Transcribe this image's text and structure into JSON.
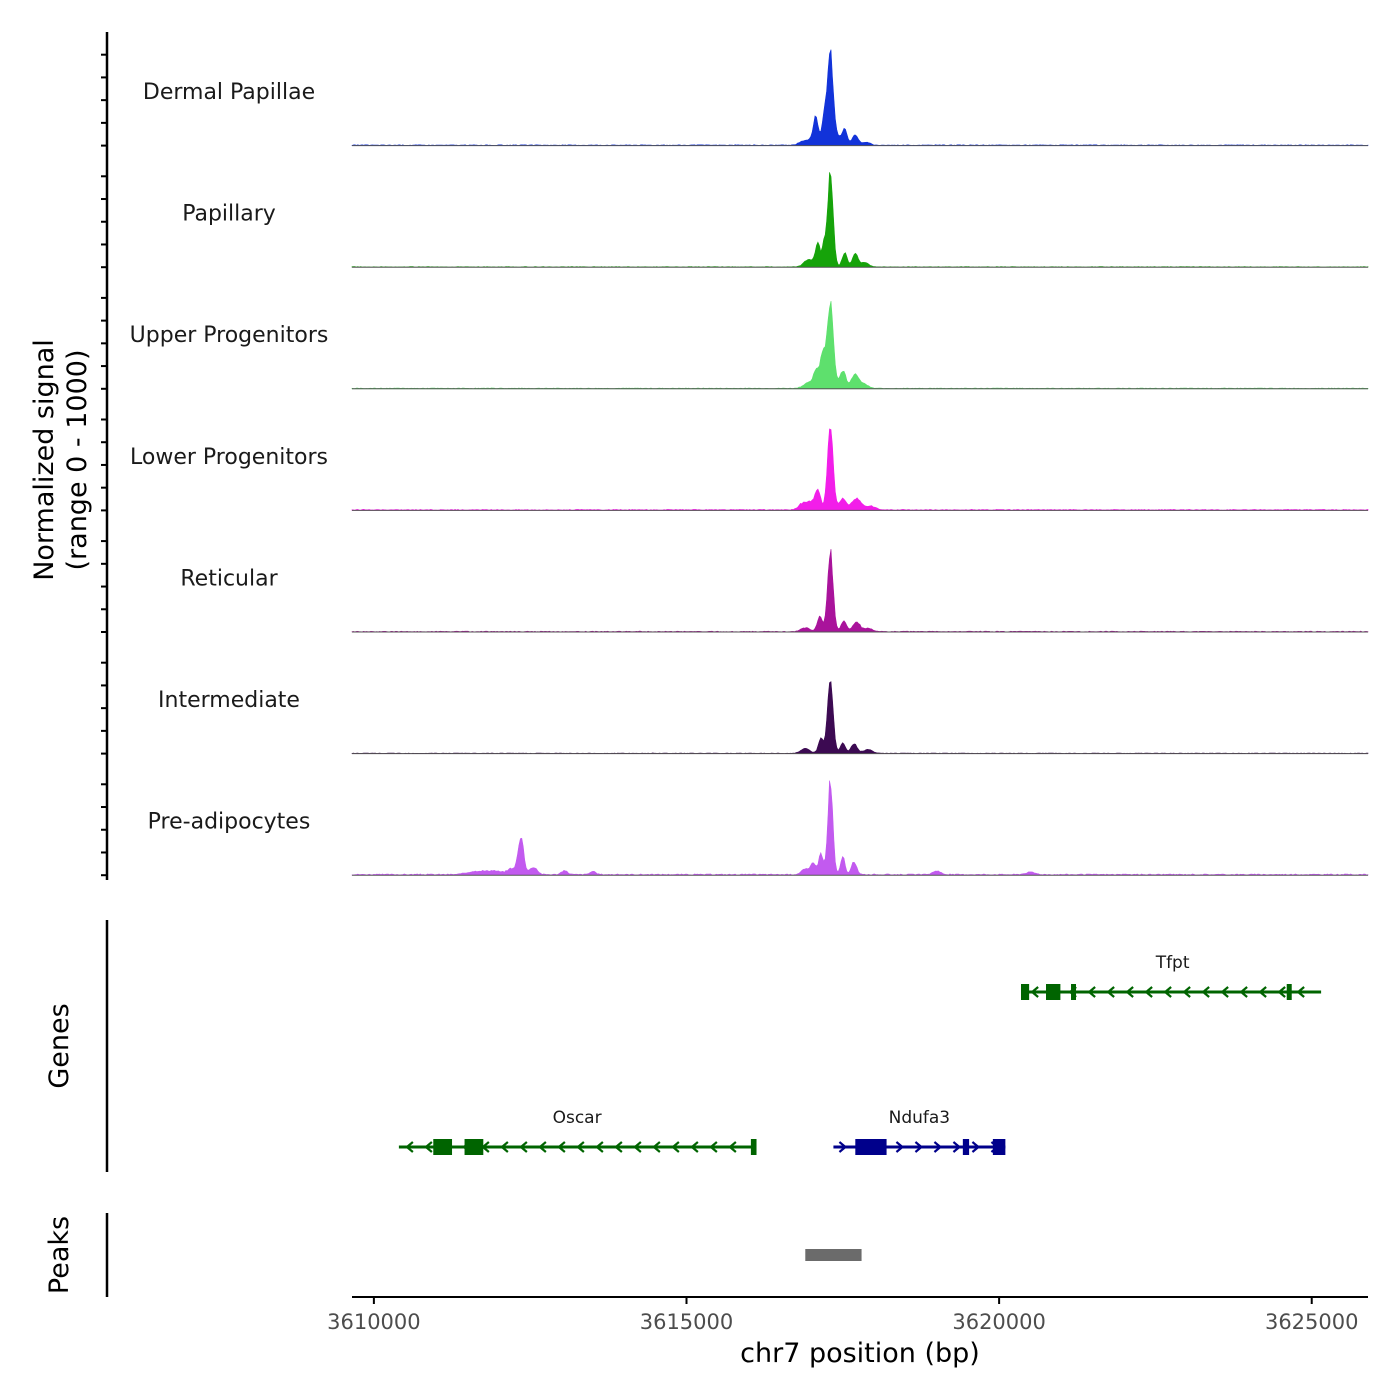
{
  "chart_data": {
    "type": "area",
    "title": "",
    "xlabel": "chr7 position (bp)",
    "ylabel_line1": "Normalized signal",
    "ylabel_line2": "(range 0 - 1000)",
    "ylim": [
      0,
      1000
    ],
    "xlim": [
      3609650,
      3625900
    ],
    "x_ticks": [
      {
        "value": 3610000,
        "label": "3610000"
      },
      {
        "value": 3615000,
        "label": "3615000"
      },
      {
        "value": 3620000,
        "label": "3620000"
      },
      {
        "value": 3625000,
        "label": "3625000"
      }
    ],
    "series": [
      {
        "name": "Dermal Papillae",
        "color": "#1233d9",
        "peaks": [
          {
            "center": 3617300,
            "height": 1000,
            "width": 45
          },
          {
            "center": 3617200,
            "height": 300,
            "width": 35
          },
          {
            "center": 3617070,
            "height": 270,
            "width": 40
          },
          {
            "center": 3617530,
            "height": 170,
            "width": 40
          },
          {
            "center": 3617700,
            "height": 110,
            "width": 50
          },
          {
            "center": 3617000,
            "height": 60,
            "width": 70
          },
          {
            "center": 3616850,
            "height": 40,
            "width": 60
          },
          {
            "center": 3617420,
            "height": 90,
            "width": 50
          },
          {
            "center": 3617880,
            "height": 30,
            "width": 60
          }
        ],
        "background": 8
      },
      {
        "name": "Papillary",
        "color": "#16a30a",
        "peaks": [
          {
            "center": 3617300,
            "height": 1000,
            "width": 45
          },
          {
            "center": 3617100,
            "height": 250,
            "width": 40
          },
          {
            "center": 3617200,
            "height": 200,
            "width": 30
          },
          {
            "center": 3617530,
            "height": 150,
            "width": 40
          },
          {
            "center": 3617700,
            "height": 140,
            "width": 45
          },
          {
            "center": 3616950,
            "height": 80,
            "width": 70
          },
          {
            "center": 3617850,
            "height": 50,
            "width": 60
          }
        ],
        "background": 6
      },
      {
        "name": "Upper Progenitors",
        "color": "#5ee06d",
        "peaks": [
          {
            "center": 3617300,
            "height": 900,
            "width": 50
          },
          {
            "center": 3617180,
            "height": 330,
            "width": 40
          },
          {
            "center": 3617080,
            "height": 190,
            "width": 45
          },
          {
            "center": 3617500,
            "height": 190,
            "width": 50
          },
          {
            "center": 3617700,
            "height": 150,
            "width": 60
          },
          {
            "center": 3616950,
            "height": 60,
            "width": 80
          },
          {
            "center": 3617850,
            "height": 40,
            "width": 60
          }
        ],
        "background": 8
      },
      {
        "name": "Lower Progenitors",
        "color": "#f21ee9",
        "peaks": [
          {
            "center": 3617300,
            "height": 880,
            "width": 45
          },
          {
            "center": 3617100,
            "height": 200,
            "width": 45
          },
          {
            "center": 3617500,
            "height": 120,
            "width": 55
          },
          {
            "center": 3617720,
            "height": 120,
            "width": 75
          },
          {
            "center": 3616850,
            "height": 60,
            "width": 60
          },
          {
            "center": 3616980,
            "height": 80,
            "width": 70
          },
          {
            "center": 3617950,
            "height": 40,
            "width": 80
          }
        ],
        "background": 10
      },
      {
        "name": "Reticular",
        "color": "#a9139b",
        "peaks": [
          {
            "center": 3617300,
            "height": 850,
            "width": 45
          },
          {
            "center": 3617130,
            "height": 160,
            "width": 40
          },
          {
            "center": 3617520,
            "height": 110,
            "width": 45
          },
          {
            "center": 3617720,
            "height": 100,
            "width": 55
          },
          {
            "center": 3616900,
            "height": 40,
            "width": 70
          },
          {
            "center": 3617900,
            "height": 35,
            "width": 70
          }
        ],
        "background": 8
      },
      {
        "name": "Intermediate",
        "color": "#3c0a52",
        "peaks": [
          {
            "center": 3617300,
            "height": 780,
            "width": 45
          },
          {
            "center": 3617150,
            "height": 160,
            "width": 40
          },
          {
            "center": 3617500,
            "height": 110,
            "width": 40
          },
          {
            "center": 3617680,
            "height": 100,
            "width": 50
          },
          {
            "center": 3616900,
            "height": 50,
            "width": 70
          },
          {
            "center": 3617900,
            "height": 40,
            "width": 70
          }
        ],
        "background": 6
      },
      {
        "name": "Pre-adipocytes",
        "color": "#c25aef",
        "peaks": [
          {
            "center": 3617300,
            "height": 1000,
            "width": 40
          },
          {
            "center": 3617150,
            "height": 230,
            "width": 35
          },
          {
            "center": 3617500,
            "height": 190,
            "width": 35
          },
          {
            "center": 3617680,
            "height": 140,
            "width": 40
          },
          {
            "center": 3616900,
            "height": 60,
            "width": 60
          },
          {
            "center": 3617030,
            "height": 130,
            "width": 40
          },
          {
            "center": 3612350,
            "height": 400,
            "width": 45
          },
          {
            "center": 3612200,
            "height": 60,
            "width": 60
          },
          {
            "center": 3612550,
            "height": 80,
            "width": 60
          },
          {
            "center": 3611900,
            "height": 40,
            "width": 150
          },
          {
            "center": 3611600,
            "height": 30,
            "width": 120
          },
          {
            "center": 3613050,
            "height": 40,
            "width": 50
          },
          {
            "center": 3613500,
            "height": 30,
            "width": 50
          },
          {
            "center": 3619000,
            "height": 40,
            "width": 60
          },
          {
            "center": 3620500,
            "height": 25,
            "width": 80
          }
        ],
        "background": 12
      }
    ],
    "genes": [
      {
        "name": "Oscar",
        "start": 3610400,
        "end": 3616100,
        "strand": "-",
        "row": 2,
        "color": "#006400",
        "exons": [
          [
            3610950,
            3611250
          ],
          [
            3611450,
            3611750
          ],
          [
            3616030,
            3616120
          ]
        ]
      },
      {
        "name": "Ndufa3",
        "start": 3617350,
        "end": 3620100,
        "strand": "+",
        "row": 2,
        "color": "#00008b",
        "exons": [
          [
            3617700,
            3618200
          ],
          [
            3619420,
            3619520
          ],
          [
            3619900,
            3620100
          ]
        ]
      },
      {
        "name": "Tfpt",
        "start": 3620400,
        "end": 3625150,
        "strand": "-",
        "row": 1,
        "color": "#006400",
        "exons": [
          [
            3620350,
            3620480
          ],
          [
            3620750,
            3620980
          ],
          [
            3621150,
            3621220
          ],
          [
            3624600,
            3624680
          ]
        ]
      }
    ],
    "track_labels": {
      "genes": "Genes",
      "peaks": "Peaks"
    },
    "peaks": [
      {
        "start": 3616900,
        "end": 3617800,
        "color": "#6b6b6b"
      }
    ]
  }
}
